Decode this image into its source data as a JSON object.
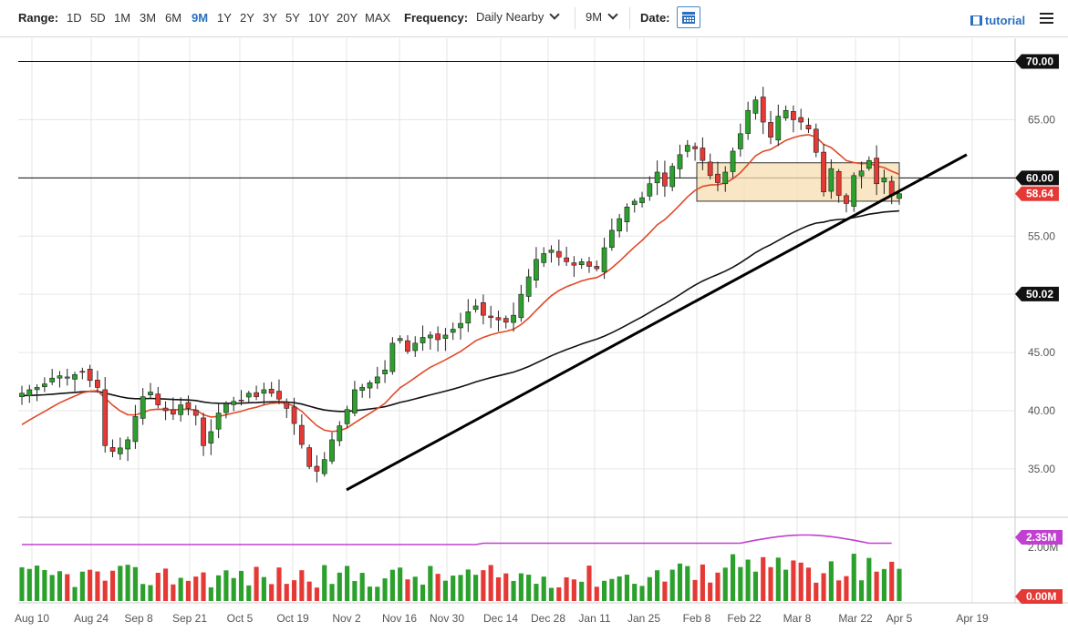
{
  "toolbar": {
    "range_label": "Range:",
    "ranges": [
      "1D",
      "5D",
      "1M",
      "3M",
      "6M",
      "9M",
      "1Y",
      "2Y",
      "3Y",
      "5Y",
      "10Y",
      "20Y",
      "MAX"
    ],
    "active_range": "9M",
    "frequency_label": "Frequency:",
    "frequency_value": "Daily Nearby",
    "period_value": "9M",
    "date_label": "Date:",
    "tutorial_label": "tutorial"
  },
  "colors": {
    "up": "#2ca02c",
    "down": "#e53935",
    "ma_short": "#e04a2a",
    "ma_long": "#111111",
    "volume_avg": "#c040d0",
    "range_box": "#f7deb0",
    "range_box_border": "#333333",
    "price_tag": "#e53935",
    "label_tag": "#111111",
    "active_range": "#2a6fbd"
  },
  "chart_data": {
    "type": "candlestick",
    "x_axis": {
      "tick_labels": [
        "Aug 10",
        "Aug 24",
        "Sep 8",
        "Sep 21",
        "Oct 5",
        "Oct 19",
        "Nov 2",
        "Nov 16",
        "Nov 30",
        "Dec 14",
        "Dec 28",
        "Jan 11",
        "Jan 25",
        "Feb 8",
        "Feb 22",
        "Mar 8",
        "Mar 22",
        "Apr 5",
        "Apr 19"
      ]
    },
    "y_axis": {
      "tick_labels": [
        "35.00",
        "40.00",
        "45.00",
        "50.00",
        "55.00",
        "60.00",
        "65.00",
        "70.00"
      ],
      "range": [
        31,
        72
      ]
    },
    "close_series": [
      41.5,
      41.8,
      42.0,
      42.3,
      42.8,
      43.0,
      42.9,
      43.1,
      43.3,
      42.6,
      42.0,
      37.0,
      36.5,
      36.8,
      37.5,
      39.5,
      41.2,
      41.6,
      40.5,
      40.0,
      39.7,
      40.5,
      40.2,
      39.6,
      37.0,
      38.2,
      39.8,
      40.6,
      40.8,
      40.9,
      41.5,
      41.2,
      41.8,
      41.5,
      41.0,
      40.2,
      38.9,
      37.1,
      35.2,
      34.8,
      35.8,
      37.5,
      38.7,
      40.1,
      41.8,
      42.0,
      42.4,
      42.9,
      43.5,
      45.8,
      46.2,
      45.1,
      45.8,
      46.3,
      46.5,
      46.1,
      46.5,
      47.0,
      47.5,
      48.5,
      49.0,
      48.2,
      48.0,
      47.8,
      47.6,
      48.2,
      50.0,
      51.5,
      53.0,
      53.5,
      53.8,
      53.2,
      52.8,
      52.5,
      52.8,
      52.4,
      52.2,
      54.0,
      55.5,
      56.5,
      57.5,
      58.0,
      58.3,
      59.5,
      60.5,
      59.3,
      61.0,
      62.0,
      62.8,
      62.5,
      61.5,
      60.2,
      59.6,
      60.5,
      62.3,
      63.8,
      65.8,
      66.7,
      64.8,
      63.5,
      65.3,
      65.8,
      65.0,
      64.8,
      64.2,
      62.2,
      58.8,
      60.8,
      58.5,
      57.8,
      60.2,
      60.6,
      61.5,
      59.5,
      60.0,
      58.5,
      58.64
    ],
    "high_series_note": "",
    "last_price": "58.64",
    "horizontal_levels": [
      {
        "value": 70.0,
        "label": "70.00"
      },
      {
        "value": 60.0,
        "label": "60.00"
      }
    ],
    "resistance_box": {
      "y_low": 58.0,
      "y_high": 61.3,
      "x_start_label": "Feb 8",
      "x_end_label": "Apr 5"
    },
    "trendline": {
      "from": {
        "date": "Nov 2",
        "price": 33.2
      },
      "to": {
        "date": "Apr 12",
        "price": 62.0
      }
    },
    "moving_averages": [
      {
        "color": "#e04a2a",
        "last_value": "58.64"
      },
      {
        "color": "#111111",
        "last_value": "50.02"
      }
    ],
    "volume": {
      "avg_label": "2.35M",
      "base_label": "0.00M",
      "grid_label": "2.00M"
    },
    "grid": true,
    "legend": "none"
  }
}
